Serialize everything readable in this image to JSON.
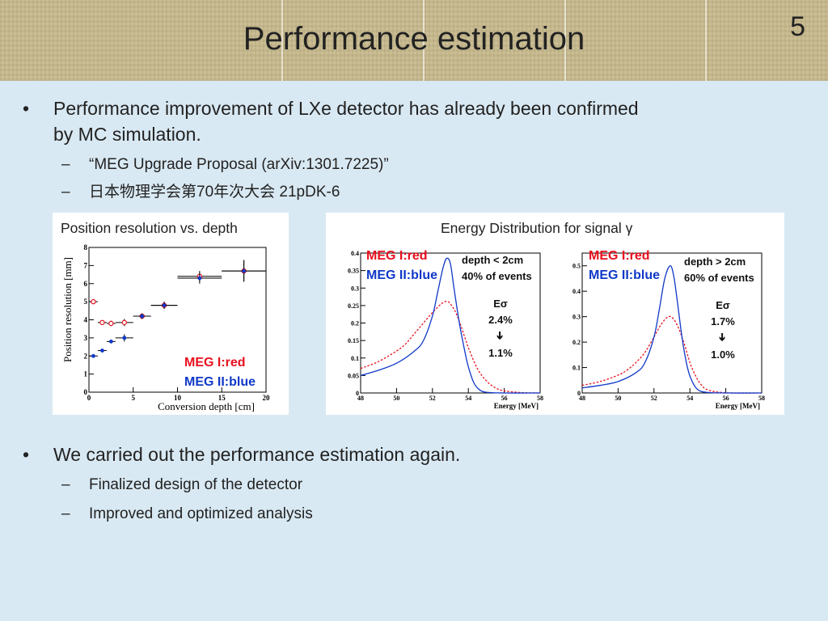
{
  "header": {
    "title": "Performance estimation",
    "slide_number": "5"
  },
  "bullets": [
    {
      "text_line1": "Performance improvement of LXe detector has already been confirmed",
      "text_line2": "by MC simulation.",
      "subs": [
        "“MEG Upgrade Proposal (arXiv:1301.7225)”",
        "日本物理学会第70年次大会 21pDK-6"
      ]
    },
    {
      "text_line1": "We carried out the performance estimation again.",
      "subs": [
        "Finalized design of the detector",
        "Improved and optimized analysis"
      ]
    }
  ],
  "colors": {
    "meg1": "#e8101e",
    "meg2": "#1038c8",
    "background": "#d9e9f3"
  },
  "chart_data": [
    {
      "type": "scatter",
      "title": "Position resolution vs. depth",
      "xlabel": "Conversion depth [cm]",
      "ylabel": "Position resolution [mm]",
      "xlim": [
        0,
        20
      ],
      "ylim": [
        0,
        8
      ],
      "xticks": [
        "0",
        "5",
        "10",
        "15",
        "20"
      ],
      "yticks": [
        "0",
        "1",
        "2",
        "3",
        "4",
        "5",
        "6",
        "7",
        "8"
      ],
      "legend": [
        "MEG I:red",
        "MEG II:blue"
      ],
      "series": [
        {
          "name": "MEG I:red",
          "color": "#e8101e",
          "x": [
            0.5,
            1.5,
            2.5,
            4,
            6,
            8.5,
            12.5,
            17.5
          ],
          "y": [
            5.0,
            3.85,
            3.8,
            3.85,
            4.2,
            4.8,
            6.4,
            6.7
          ],
          "xerr": [
            0.5,
            0.5,
            0.5,
            1,
            1,
            1.5,
            2.5,
            2.5
          ],
          "yerr": [
            0.05,
            0.1,
            0.15,
            0.2,
            0.15,
            0.2,
            0.3,
            0.6
          ]
        },
        {
          "name": "MEG II:blue",
          "color": "#1038c8",
          "x": [
            0.5,
            1.5,
            2.5,
            4,
            6,
            8.5,
            12.5,
            17.5
          ],
          "y": [
            2.0,
            2.3,
            2.8,
            3.0,
            4.2,
            4.8,
            6.3,
            6.7
          ],
          "xerr": [
            0.5,
            0.5,
            0.5,
            1,
            1,
            1.5,
            2.5,
            2.5
          ],
          "yerr": [
            0.05,
            0.08,
            0.1,
            0.2,
            0.15,
            0.2,
            0.3,
            0.6
          ]
        }
      ]
    },
    {
      "type": "line",
      "title": "Energy Distribution for signal γ",
      "xlabel": "Energy [MeV]",
      "xlim": [
        48,
        58
      ],
      "ylim": [
        0,
        0.4
      ],
      "xticks": [
        "48",
        "50",
        "52",
        "54",
        "56",
        "58"
      ],
      "yticks": [
        "0",
        "0.05",
        "0.1",
        "0.15",
        "0.2",
        "0.25",
        "0.3",
        "0.35",
        "0.4"
      ],
      "legend": [
        "MEG I:red",
        "MEG II:blue"
      ],
      "annotations": [
        "depth < 2cm",
        "40% of events",
        "Eσ",
        "2.4%",
        "➔",
        "1.1%"
      ],
      "series": [
        {
          "name": "MEG I:red",
          "color": "#e8101e",
          "style": "dashed",
          "x": [
            48,
            49,
            50,
            50.5,
            51,
            51.5,
            52,
            52.5,
            52.8,
            53,
            53.3,
            53.6,
            54,
            54.5,
            55,
            55.5,
            56,
            57,
            58
          ],
          "y": [
            0.07,
            0.09,
            0.12,
            0.14,
            0.17,
            0.2,
            0.23,
            0.255,
            0.262,
            0.255,
            0.23,
            0.19,
            0.13,
            0.07,
            0.035,
            0.015,
            0.006,
            0.001,
            0
          ]
        },
        {
          "name": "MEG II:blue",
          "color": "#1038c8",
          "style": "solid",
          "x": [
            48,
            49,
            50,
            51,
            51.5,
            52,
            52.3,
            52.6,
            52.8,
            53,
            53.2,
            53.5,
            53.8,
            54,
            54.3,
            54.6,
            55,
            56,
            58
          ],
          "y": [
            0.05,
            0.065,
            0.085,
            0.12,
            0.15,
            0.22,
            0.29,
            0.36,
            0.385,
            0.37,
            0.3,
            0.2,
            0.12,
            0.075,
            0.03,
            0.01,
            0.002,
            0,
            0
          ]
        }
      ]
    },
    {
      "type": "line",
      "xlabel": "Energy [MeV]",
      "xlim": [
        48,
        58
      ],
      "ylim": [
        0,
        0.55
      ],
      "xticks": [
        "48",
        "50",
        "52",
        "54",
        "56",
        "58"
      ],
      "yticks": [
        "0",
        "0.1",
        "0.2",
        "0.3",
        "0.4",
        "0.5"
      ],
      "legend": [
        "MEG I:red",
        "MEG II:blue"
      ],
      "annotations": [
        "depth > 2cm",
        "60% of events",
        "Eσ",
        "1.7%",
        "➔",
        "1.0%"
      ],
      "series": [
        {
          "name": "MEG I:red",
          "color": "#e8101e",
          "style": "dashed",
          "x": [
            48,
            49,
            50,
            50.5,
            51,
            51.5,
            52,
            52.4,
            52.8,
            53.1,
            53.4,
            53.7,
            54,
            54.3,
            54.6,
            55,
            56,
            58
          ],
          "y": [
            0.03,
            0.045,
            0.07,
            0.09,
            0.12,
            0.16,
            0.22,
            0.27,
            0.3,
            0.29,
            0.25,
            0.19,
            0.12,
            0.07,
            0.035,
            0.012,
            0.001,
            0
          ]
        },
        {
          "name": "MEG II:blue",
          "color": "#1038c8",
          "style": "solid",
          "x": [
            48,
            49,
            50,
            51,
            51.5,
            52,
            52.3,
            52.6,
            52.9,
            53.1,
            53.3,
            53.6,
            53.9,
            54.2,
            54.5,
            55,
            56,
            58
          ],
          "y": [
            0.02,
            0.03,
            0.045,
            0.08,
            0.12,
            0.22,
            0.33,
            0.45,
            0.5,
            0.46,
            0.36,
            0.2,
            0.09,
            0.035,
            0.01,
            0.002,
            0,
            0
          ]
        }
      ]
    }
  ]
}
